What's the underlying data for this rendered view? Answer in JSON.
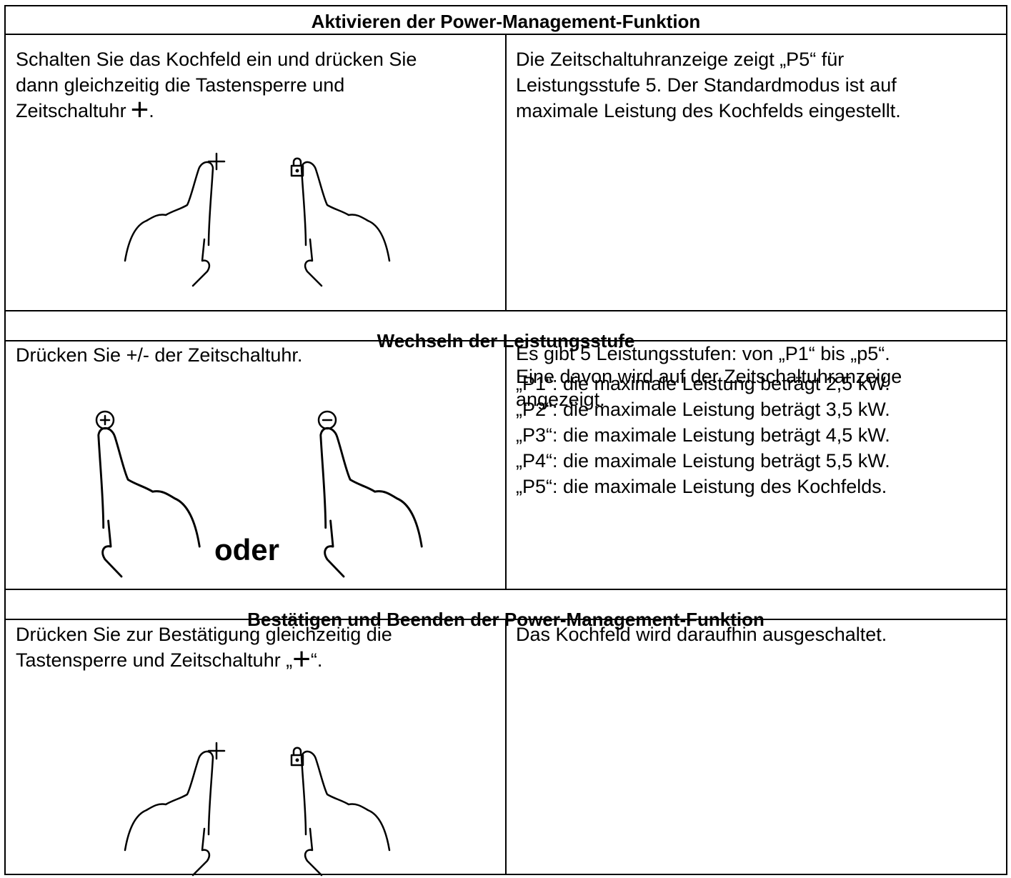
{
  "sections": [
    {
      "heading": "Aktivieren der Power-Management-Funktion",
      "left": {
        "lines": [
          "Schalten Sie das Kochfeld ein und drücken Sie",
          "dann gleichzeitig die Tastensperre und"
        ],
        "last_line": "Zeitschaltuhr",
        "symbol": "+",
        "after": "."
      },
      "right": {
        "lines": [
          "Die Zeitschaltuhranzeige zeigt „P5“ für",
          "Leistungsstufe 5. Der Standardmodus ist auf",
          "maximale Leistung des Kochfelds eingestellt."
        ]
      }
    },
    {
      "heading": "Wechseln der Leistungsstufe",
      "left": {
        "lines": [
          "Drücken Sie +/- der Zeitschaltuhr."
        ],
        "separator": "oder"
      },
      "right": {
        "lines": [
          "Es gibt 5 Leistungsstufen: von „P1“ bis „p5“.",
          "Eine davon wird auf der Zeitschaltuhranzeige",
          "angezeigt."
        ],
        "items": [
          "„P1“: die maximale Leistung beträgt 2,5 kW.",
          "„P2“: die maximale Leistung beträgt 3,5 kW.",
          "„P3“: die maximale Leistung beträgt 4,5 kW.",
          "„P4“: die maximale Leistung beträgt 5,5 kW.",
          "„P5“: die maximale Leistung des Kochfelds."
        ]
      }
    },
    {
      "heading": "Bestätigen und Beenden der Power-Management-Funktion",
      "left": {
        "lines": [
          "Drücken Sie zur Bestätigung gleichzeitig die"
        ],
        "last_line": "Tastensperre und Zeitschaltuhr „",
        "symbol": "+",
        "after": "“."
      },
      "right": {
        "lines": [
          "Das Kochfeld wird daraufhin ausgeschaltet."
        ]
      }
    }
  ]
}
